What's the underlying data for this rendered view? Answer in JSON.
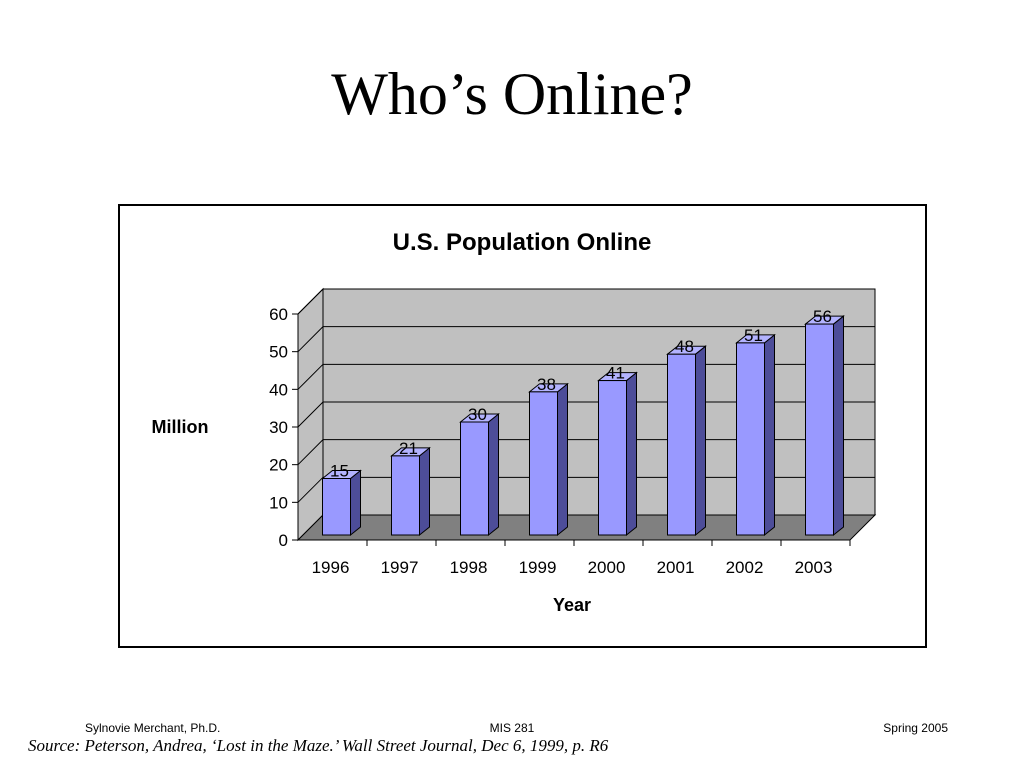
{
  "slide": {
    "title": "Who’s Online?",
    "footer_left": "Sylnovie Merchant, Ph.D.",
    "footer_center": "MIS 281",
    "footer_right": "Spring 2005",
    "source": "Source: Peterson, Andrea, ‘Lost in the Maze.’ Wall Street Journal, Dec 6, 1999, p. R6"
  },
  "chart_data": {
    "type": "bar",
    "title": "U.S. Population Online",
    "xlabel": "Year",
    "ylabel": "Million",
    "categories": [
      "1996",
      "1997",
      "1998",
      "1999",
      "2000",
      "2001",
      "2002",
      "2003"
    ],
    "values": [
      15,
      21,
      30,
      38,
      41,
      48,
      51,
      56
    ],
    "ylim": [
      0,
      60
    ],
    "yticks": [
      0,
      10,
      20,
      30,
      40,
      50,
      60
    ],
    "grid": true,
    "legend": "none",
    "style": "3d",
    "colors": {
      "bar_front": "#9999ff",
      "bar_side": "#4d4d99",
      "bar_top": "#b3b3ff",
      "wall": "#c0c0c0",
      "floor": "#808080"
    }
  }
}
